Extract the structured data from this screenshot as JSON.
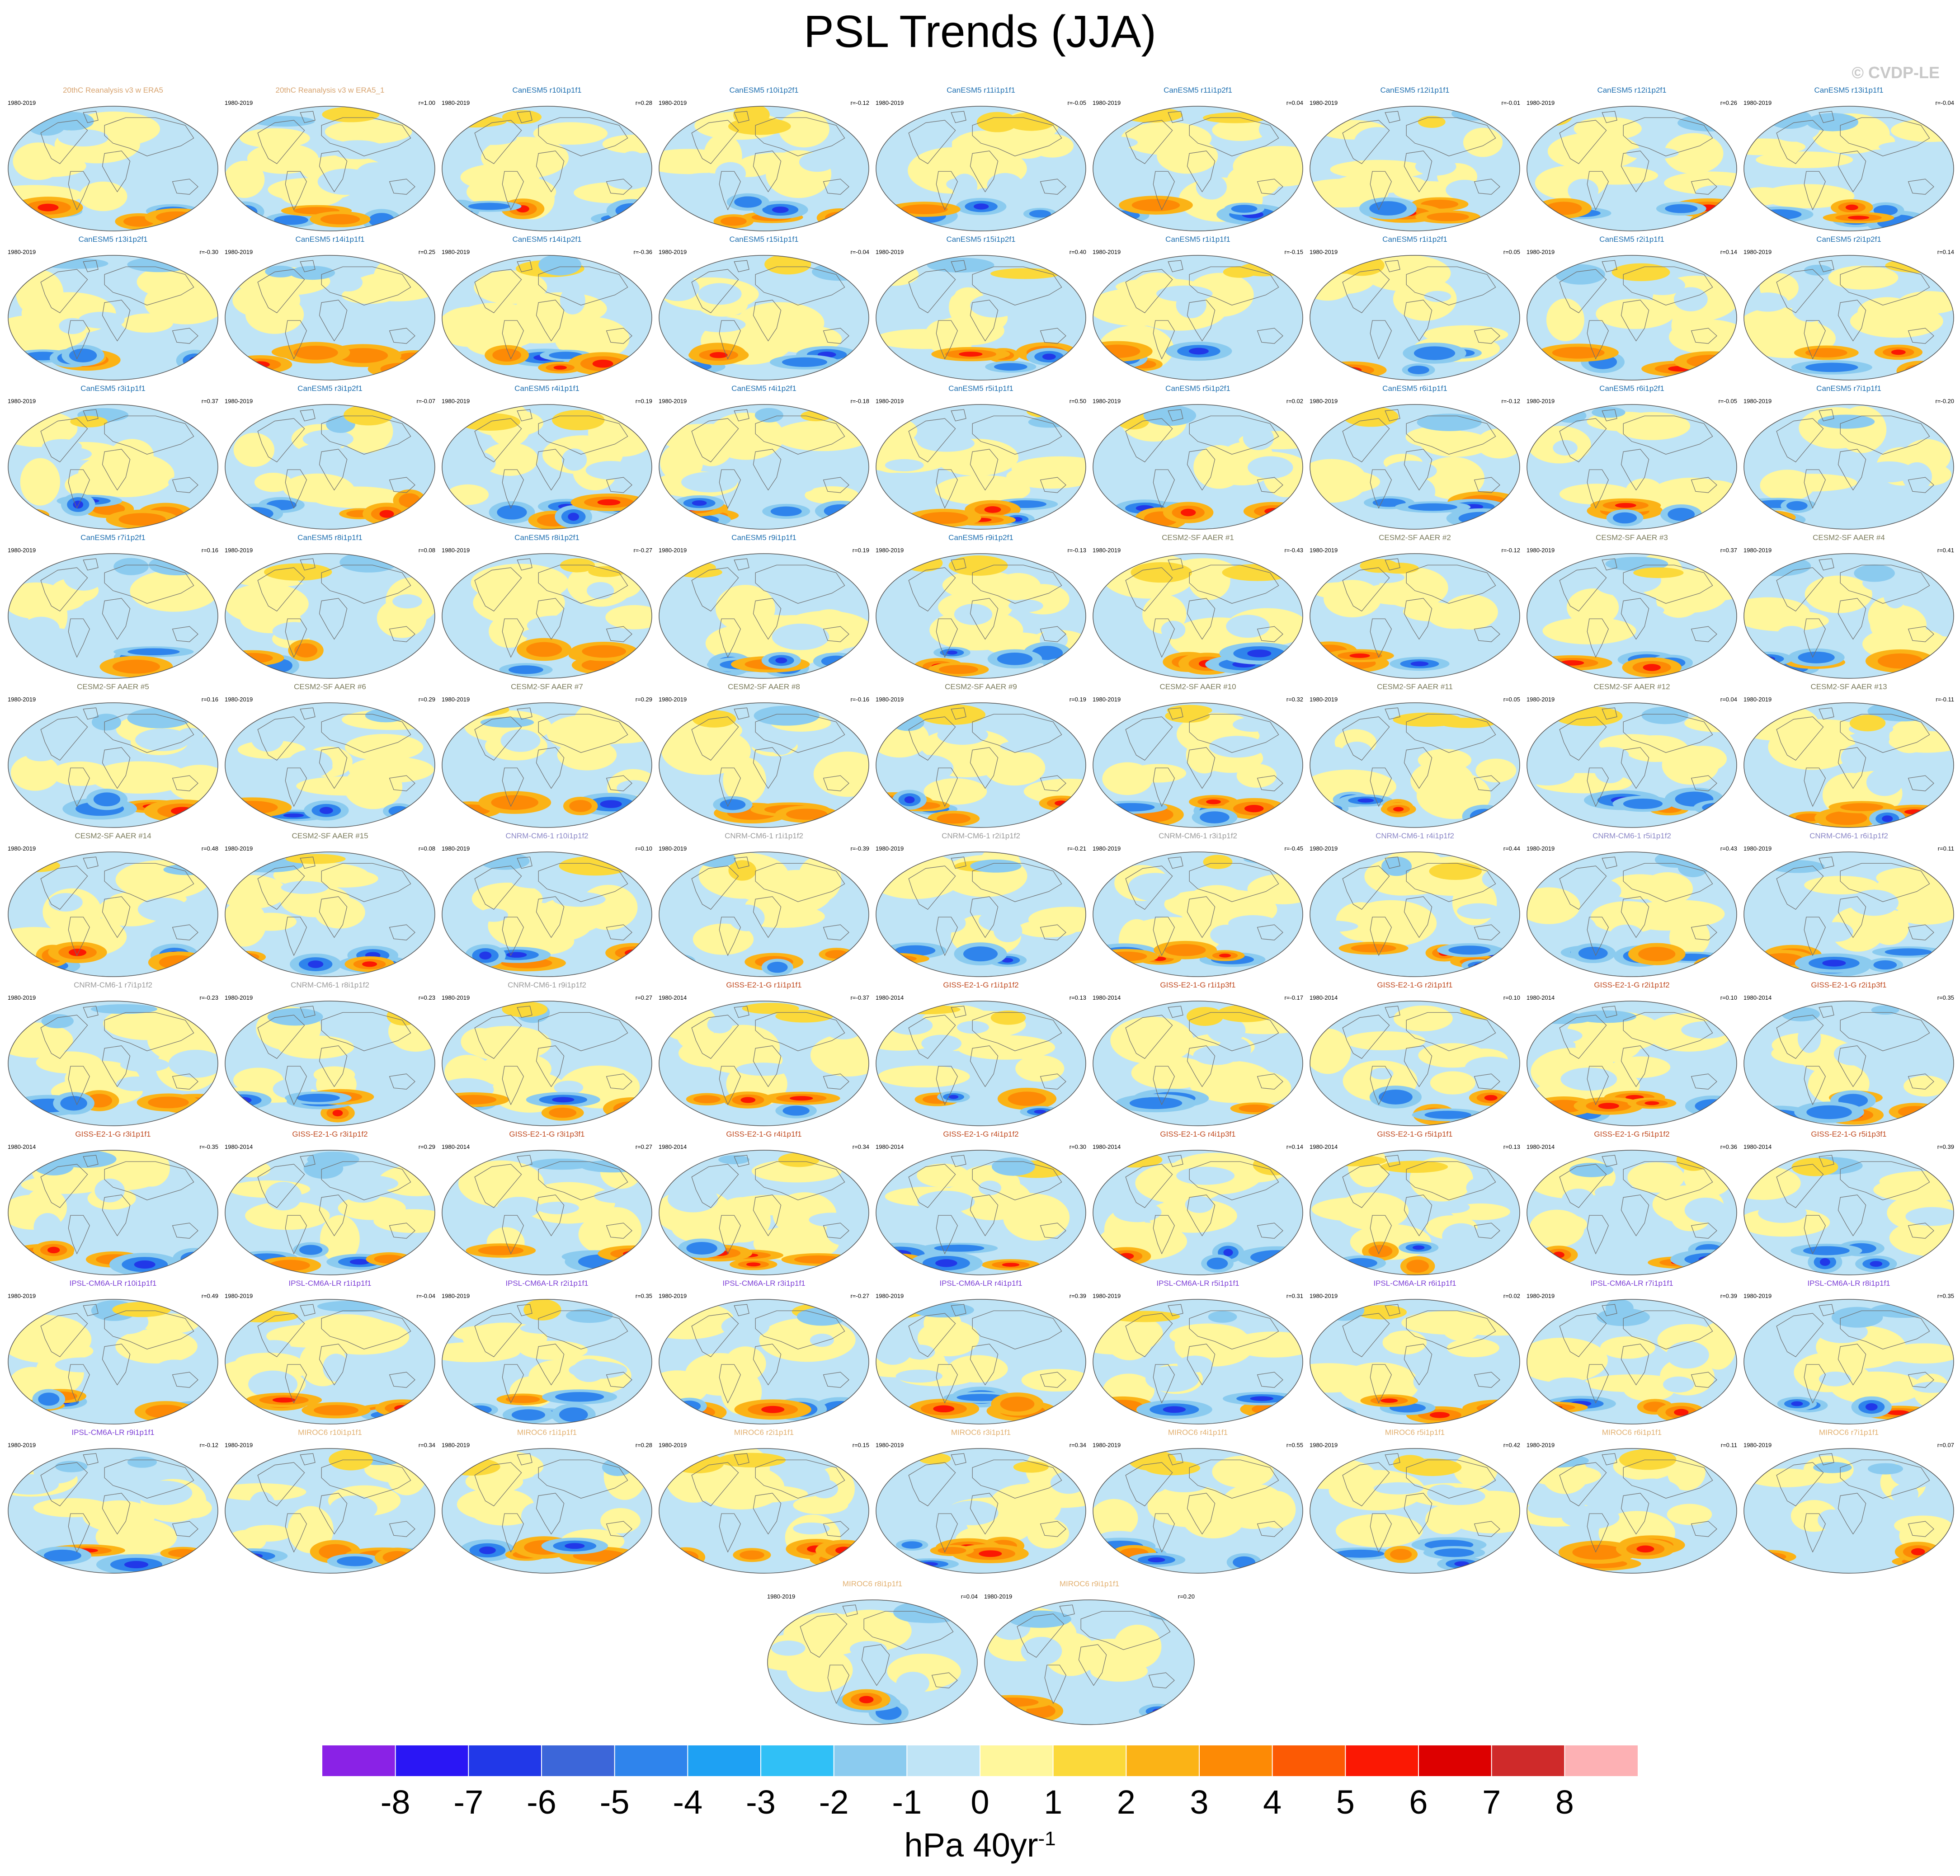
{
  "title": "PSL Trends (JJA)",
  "watermark": "© CVDP-LE",
  "units": {
    "base": "hPa 40yr",
    "exponent": "-1"
  },
  "chart_data": {
    "type": "heatmap",
    "description_type": "small-multiple global map panels of sea level pressure trend",
    "colorbar": {
      "ticks": [
        "-8",
        "-7",
        "-6",
        "-5",
        "-4",
        "-3",
        "-2",
        "-1",
        "0",
        "1",
        "2",
        "3",
        "4",
        "5",
        "6",
        "7",
        "8"
      ],
      "colors": [
        "#8a22e6",
        "#2a16f5",
        "#2138e8",
        "#3c66d9",
        "#2f84ec",
        "#1ea1f3",
        "#30c0f6",
        "#8bcbef",
        "#bfe4f6",
        "#fff79c",
        "#fbd93a",
        "#fbb316",
        "#fd8a05",
        "#fc5a04",
        "#fb1803",
        "#dd0000",
        "#cf2a2a",
        "#fdb1b4"
      ]
    },
    "panels": [
      {
        "label": "20thC Reanalysis v3 w ERA5",
        "period": "1980-2019",
        "r": "",
        "color": "#d8a470"
      },
      {
        "label": "20thC Reanalysis v3 w ERA5_1",
        "period": "1980-2019",
        "r": "r=1.00",
        "color": "#d8a470"
      },
      {
        "label": "CanESM5 r10i1p1f1",
        "period": "1980-2019",
        "r": "r=0.28",
        "color": "#1e6fb0"
      },
      {
        "label": "CanESM5 r10i1p2f1",
        "period": "1980-2019",
        "r": "r=-0.12",
        "color": "#1e6fb0"
      },
      {
        "label": "CanESM5 r11i1p1f1",
        "period": "1980-2019",
        "r": "r=-0.05",
        "color": "#1e6fb0"
      },
      {
        "label": "CanESM5 r11i1p2f1",
        "period": "1980-2019",
        "r": "r=0.04",
        "color": "#1e6fb0"
      },
      {
        "label": "CanESM5 r12i1p1f1",
        "period": "1980-2019",
        "r": "r=-0.01",
        "color": "#1e6fb0"
      },
      {
        "label": "CanESM5 r12i1p2f1",
        "period": "1980-2019",
        "r": "r=0.26",
        "color": "#1e6fb0"
      },
      {
        "label": "CanESM5 r13i1p1f1",
        "period": "1980-2019",
        "r": "r=-0.04",
        "color": "#1e6fb0"
      },
      {
        "label": "CanESM5 r13i1p2f1",
        "period": "1980-2019",
        "r": "r=-0.30",
        "color": "#1e6fb0"
      },
      {
        "label": "CanESM5 r14i1p1f1",
        "period": "1980-2019",
        "r": "r=0.25",
        "color": "#1e6fb0"
      },
      {
        "label": "CanESM5 r14i1p2f1",
        "period": "1980-2019",
        "r": "r=-0.36",
        "color": "#1e6fb0"
      },
      {
        "label": "CanESM5 r15i1p1f1",
        "period": "1980-2019",
        "r": "r=-0.04",
        "color": "#1e6fb0"
      },
      {
        "label": "CanESM5 r15i1p2f1",
        "period": "1980-2019",
        "r": "r=0.40",
        "color": "#1e6fb0"
      },
      {
        "label": "CanESM5 r1i1p1f1",
        "period": "1980-2019",
        "r": "r=-0.15",
        "color": "#1e6fb0"
      },
      {
        "label": "CanESM5 r1i1p2f1",
        "period": "1980-2019",
        "r": "r=0.05",
        "color": "#1e6fb0"
      },
      {
        "label": "CanESM5 r2i1p1f1",
        "period": "1980-2019",
        "r": "r=0.14",
        "color": "#1e6fb0"
      },
      {
        "label": "CanESM5 r2i1p2f1",
        "period": "1980-2019",
        "r": "r=0.14",
        "color": "#1e6fb0"
      },
      {
        "label": "CanESM5 r3i1p1f1",
        "period": "1980-2019",
        "r": "r=0.37",
        "color": "#1e6fb0"
      },
      {
        "label": "CanESM5 r3i1p2f1",
        "period": "1980-2019",
        "r": "r=-0.07",
        "color": "#1e6fb0"
      },
      {
        "label": "CanESM5 r4i1p1f1",
        "period": "1980-2019",
        "r": "r=0.19",
        "color": "#1e6fb0"
      },
      {
        "label": "CanESM5 r4i1p2f1",
        "period": "1980-2019",
        "r": "r=-0.18",
        "color": "#1e6fb0"
      },
      {
        "label": "CanESM5 r5i1p1f1",
        "period": "1980-2019",
        "r": "r=0.50",
        "color": "#1e6fb0"
      },
      {
        "label": "CanESM5 r5i1p2f1",
        "period": "1980-2019",
        "r": "r=0.02",
        "color": "#1e6fb0"
      },
      {
        "label": "CanESM5 r6i1p1f1",
        "period": "1980-2019",
        "r": "r=-0.12",
        "color": "#1e6fb0"
      },
      {
        "label": "CanESM5 r6i1p2f1",
        "period": "1980-2019",
        "r": "r=-0.05",
        "color": "#1e6fb0"
      },
      {
        "label": "CanESM5 r7i1p1f1",
        "period": "1980-2019",
        "r": "r=-0.20",
        "color": "#1e6fb0"
      },
      {
        "label": "CanESM5 r7i1p2f1",
        "period": "1980-2019",
        "r": "r=0.16",
        "color": "#1e6fb0"
      },
      {
        "label": "CanESM5 r8i1p1f1",
        "period": "1980-2019",
        "r": "r=0.08",
        "color": "#1e6fb0"
      },
      {
        "label": "CanESM5 r8i1p2f1",
        "period": "1980-2019",
        "r": "r=-0.27",
        "color": "#1e6fb0"
      },
      {
        "label": "CanESM5 r9i1p1f1",
        "period": "1980-2019",
        "r": "r=0.19",
        "color": "#1e6fb0"
      },
      {
        "label": "CanESM5 r9i1p2f1",
        "period": "1980-2019",
        "r": "r=-0.13",
        "color": "#1e6fb0"
      },
      {
        "label": "CESM2-SF AAER #1",
        "period": "1980-2019",
        "r": "r=-0.43",
        "color": "#7a7a5a"
      },
      {
        "label": "CESM2-SF AAER #2",
        "period": "1980-2019",
        "r": "r=-0.12",
        "color": "#7a7a5a"
      },
      {
        "label": "CESM2-SF AAER #3",
        "period": "1980-2019",
        "r": "r=0.37",
        "color": "#7a7a5a"
      },
      {
        "label": "CESM2-SF AAER #4",
        "period": "1980-2019",
        "r": "r=0.41",
        "color": "#7a7a5a"
      },
      {
        "label": "CESM2-SF AAER #5",
        "period": "1980-2019",
        "r": "r=0.16",
        "color": "#7a7a5a"
      },
      {
        "label": "CESM2-SF AAER #6",
        "period": "1980-2019",
        "r": "r=0.29",
        "color": "#7a7a5a"
      },
      {
        "label": "CESM2-SF AAER #7",
        "period": "1980-2019",
        "r": "r=0.29",
        "color": "#7a7a5a"
      },
      {
        "label": "CESM2-SF AAER #8",
        "period": "1980-2019",
        "r": "r=-0.16",
        "color": "#7a7a5a"
      },
      {
        "label": "CESM2-SF AAER #9",
        "period": "1980-2019",
        "r": "r=0.19",
        "color": "#7a7a5a"
      },
      {
        "label": "CESM2-SF AAER #10",
        "period": "1980-2019",
        "r": "r=0.32",
        "color": "#7a7a5a"
      },
      {
        "label": "CESM2-SF AAER #11",
        "period": "1980-2019",
        "r": "r=0.05",
        "color": "#7a7a5a"
      },
      {
        "label": "CESM2-SF AAER #12",
        "period": "1980-2019",
        "r": "r=0.04",
        "color": "#7a7a5a"
      },
      {
        "label": "CESM2-SF AAER #13",
        "period": "1980-2019",
        "r": "r=-0.11",
        "color": "#7a7a5a"
      },
      {
        "label": "CESM2-SF AAER #14",
        "period": "1980-2019",
        "r": "r=0.48",
        "color": "#7a7a5a"
      },
      {
        "label": "CESM2-SF AAER #15",
        "period": "1980-2019",
        "r": "r=0.08",
        "color": "#7a7a5a"
      },
      {
        "label": "CNRM-CM6-1 r10i1p1f2",
        "period": "1980-2019",
        "r": "r=0.10",
        "color": "#8a86c6"
      },
      {
        "label": "CNRM-CM6-1 r1i1p1f2",
        "period": "1980-2019",
        "r": "r=-0.39",
        "color": "#9a9a9a"
      },
      {
        "label": "CNRM-CM6-1 r2i1p1f2",
        "period": "1980-2019",
        "r": "r=-0.21",
        "color": "#9a9a9a"
      },
      {
        "label": "CNRM-CM6-1 r3i1p1f2",
        "period": "1980-2019",
        "r": "r=-0.45",
        "color": "#9a9a9a"
      },
      {
        "label": "CNRM-CM6-1 r4i1p1f2",
        "period": "1980-2019",
        "r": "r=0.44",
        "color": "#8a86c6"
      },
      {
        "label": "CNRM-CM6-1 r5i1p1f2",
        "period": "1980-2019",
        "r": "r=0.43",
        "color": "#8a86c6"
      },
      {
        "label": "CNRM-CM6-1 r6i1p1f2",
        "period": "1980-2019",
        "r": "r=0.11",
        "color": "#8a86c6"
      },
      {
        "label": "CNRM-CM6-1 r7i1p1f2",
        "period": "1980-2019",
        "r": "r=-0.23",
        "color": "#9a9a9a"
      },
      {
        "label": "CNRM-CM6-1 r8i1p1f2",
        "period": "1980-2019",
        "r": "r=0.23",
        "color": "#9a9a9a"
      },
      {
        "label": "CNRM-CM6-1 r9i1p1f2",
        "period": "1980-2019",
        "r": "r=0.27",
        "color": "#9a9a9a"
      },
      {
        "label": "GISS-E2-1-G r1i1p1f1",
        "period": "1980-2014",
        "r": "r=-0.37",
        "color": "#c04a20"
      },
      {
        "label": "GISS-E2-1-G r1i1p1f2",
        "period": "1980-2014",
        "r": "r=0.13",
        "color": "#c04a20"
      },
      {
        "label": "GISS-E2-1-G r1i1p3f1",
        "period": "1980-2014",
        "r": "r=-0.17",
        "color": "#c04a20"
      },
      {
        "label": "GISS-E2-1-G r2i1p1f1",
        "period": "1980-2014",
        "r": "r=0.10",
        "color": "#c04a20"
      },
      {
        "label": "GISS-E2-1-G r2i1p1f2",
        "period": "1980-2014",
        "r": "r=0.10",
        "color": "#c04a20"
      },
      {
        "label": "GISS-E2-1-G r2i1p3f1",
        "period": "1980-2014",
        "r": "r=0.35",
        "color": "#c04a20"
      },
      {
        "label": "GISS-E2-1-G r3i1p1f1",
        "period": "1980-2014",
        "r": "r=-0.35",
        "color": "#c04a20"
      },
      {
        "label": "GISS-E2-1-G r3i1p1f2",
        "period": "1980-2014",
        "r": "r=0.29",
        "color": "#c04a20"
      },
      {
        "label": "GISS-E2-1-G r3i1p3f1",
        "period": "1980-2014",
        "r": "r=0.27",
        "color": "#c04a20"
      },
      {
        "label": "GISS-E2-1-G r4i1p1f1",
        "period": "1980-2014",
        "r": "r=0.34",
        "color": "#c04a20"
      },
      {
        "label": "GISS-E2-1-G r4i1p1f2",
        "period": "1980-2014",
        "r": "r=0.30",
        "color": "#c04a20"
      },
      {
        "label": "GISS-E2-1-G r4i1p3f1",
        "period": "1980-2014",
        "r": "r=0.14",
        "color": "#c04a20"
      },
      {
        "label": "GISS-E2-1-G r5i1p1f1",
        "period": "1980-2014",
        "r": "r=0.13",
        "color": "#c04a20"
      },
      {
        "label": "GISS-E2-1-G r5i1p1f2",
        "period": "1980-2014",
        "r": "r=0.36",
        "color": "#c04a20"
      },
      {
        "label": "GISS-E2-1-G r5i1p3f1",
        "period": "1980-2014",
        "r": "r=0.39",
        "color": "#c04a20"
      },
      {
        "label": "IPSL-CM6A-LR r10i1p1f1",
        "period": "1980-2019",
        "r": "r=0.49",
        "color": "#7d3fd6"
      },
      {
        "label": "IPSL-CM6A-LR r1i1p1f1",
        "period": "1980-2019",
        "r": "r=-0.04",
        "color": "#7d3fd6"
      },
      {
        "label": "IPSL-CM6A-LR r2i1p1f1",
        "period": "1980-2019",
        "r": "r=0.35",
        "color": "#7d3fd6"
      },
      {
        "label": "IPSL-CM6A-LR r3i1p1f1",
        "period": "1980-2019",
        "r": "r=-0.27",
        "color": "#7d3fd6"
      },
      {
        "label": "IPSL-CM6A-LR r4i1p1f1",
        "period": "1980-2019",
        "r": "r=0.39",
        "color": "#7d3fd6"
      },
      {
        "label": "IPSL-CM6A-LR r5i1p1f1",
        "period": "1980-2019",
        "r": "r=0.31",
        "color": "#7d3fd6"
      },
      {
        "label": "IPSL-CM6A-LR r6i1p1f1",
        "period": "1980-2019",
        "r": "r=0.02",
        "color": "#7d3fd6"
      },
      {
        "label": "IPSL-CM6A-LR r7i1p1f1",
        "period": "1980-2019",
        "r": "r=0.39",
        "color": "#7d3fd6"
      },
      {
        "label": "IPSL-CM6A-LR r8i1p1f1",
        "period": "1980-2019",
        "r": "r=0.35",
        "color": "#7d3fd6"
      },
      {
        "label": "IPSL-CM6A-LR r9i1p1f1",
        "period": "1980-2019",
        "r": "r=-0.12",
        "color": "#7d3fd6"
      },
      {
        "label": "MIROC6 r10i1p1f1",
        "period": "1980-2019",
        "r": "r=0.34",
        "color": "#e2b070"
      },
      {
        "label": "MIROC6 r1i1p1f1",
        "period": "1980-2019",
        "r": "r=0.28",
        "color": "#e2b070"
      },
      {
        "label": "MIROC6 r2i1p1f1",
        "period": "1980-2019",
        "r": "r=0.15",
        "color": "#e2b070"
      },
      {
        "label": "MIROC6 r3i1p1f1",
        "period": "1980-2019",
        "r": "r=0.34",
        "color": "#e2b070"
      },
      {
        "label": "MIROC6 r4i1p1f1",
        "period": "1980-2019",
        "r": "r=0.55",
        "color": "#e2b070"
      },
      {
        "label": "MIROC6 r5i1p1f1",
        "period": "1980-2019",
        "r": "r=0.42",
        "color": "#e2b070"
      },
      {
        "label": "MIROC6 r6i1p1f1",
        "period": "1980-2019",
        "r": "r=0.11",
        "color": "#e2b070"
      },
      {
        "label": "MIROC6 r7i1p1f1",
        "period": "1980-2019",
        "r": "r=0.07",
        "color": "#e2b070"
      },
      {
        "label": "MIROC6 r8i1p1f1",
        "period": "1980-2019",
        "r": "r=0.04",
        "color": "#e2b070"
      },
      {
        "label": "MIROC6 r9i1p1f1",
        "period": "1980-2019",
        "r": "r=0.20",
        "color": "#e2b070"
      }
    ]
  }
}
